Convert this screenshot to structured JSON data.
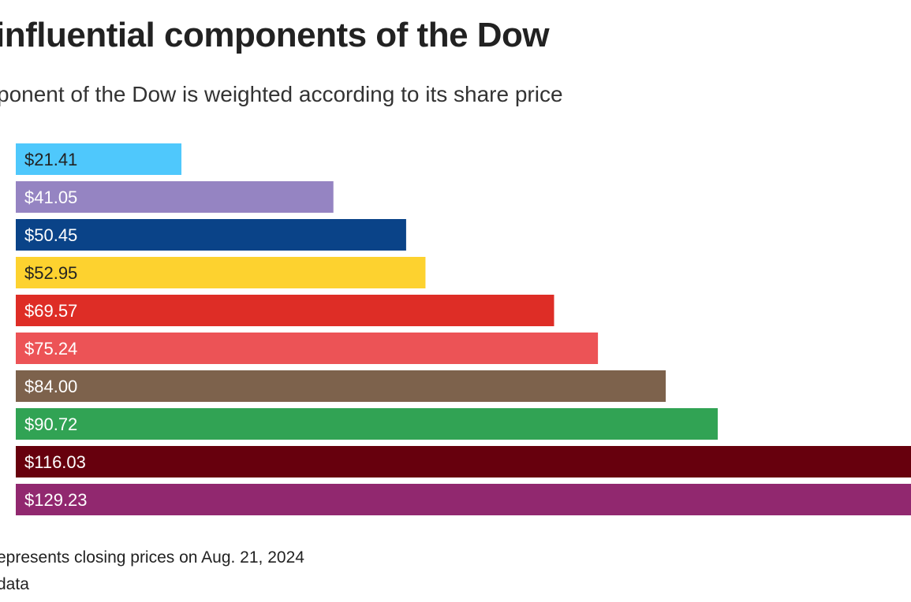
{
  "title": "influential components of the Dow",
  "subtitle": "ponent of the Dow is weighted according to its share price",
  "note": "epresents closing prices on Aug. 21, 2024",
  "source": " data",
  "chart_data": {
    "type": "bar",
    "orientation": "horizontal",
    "values": [
      21.41,
      41.05,
      50.45,
      52.95,
      69.57,
      75.24,
      84.0,
      90.72,
      116.03,
      129.23
    ],
    "labels": [
      "$21.41",
      "$41.05",
      "$50.45",
      "$52.95",
      "$69.57",
      "$75.24",
      "$84.00",
      "$90.72",
      "$116.03",
      "$129.23"
    ],
    "colors": [
      "#4fc8fc",
      "#9584c2",
      "#0a4388",
      "#fdd22f",
      "#de2d26",
      "#ec5356",
      "#7d624c",
      "#31a354",
      "#67000d",
      "#91286f"
    ],
    "label_colors": [
      "#222222",
      "#ffffff",
      "#ffffff",
      "#222222",
      "#ffffff",
      "#ffffff",
      "#ffffff",
      "#ffffff",
      "#ffffff",
      "#ffffff"
    ],
    "grid": false
  }
}
